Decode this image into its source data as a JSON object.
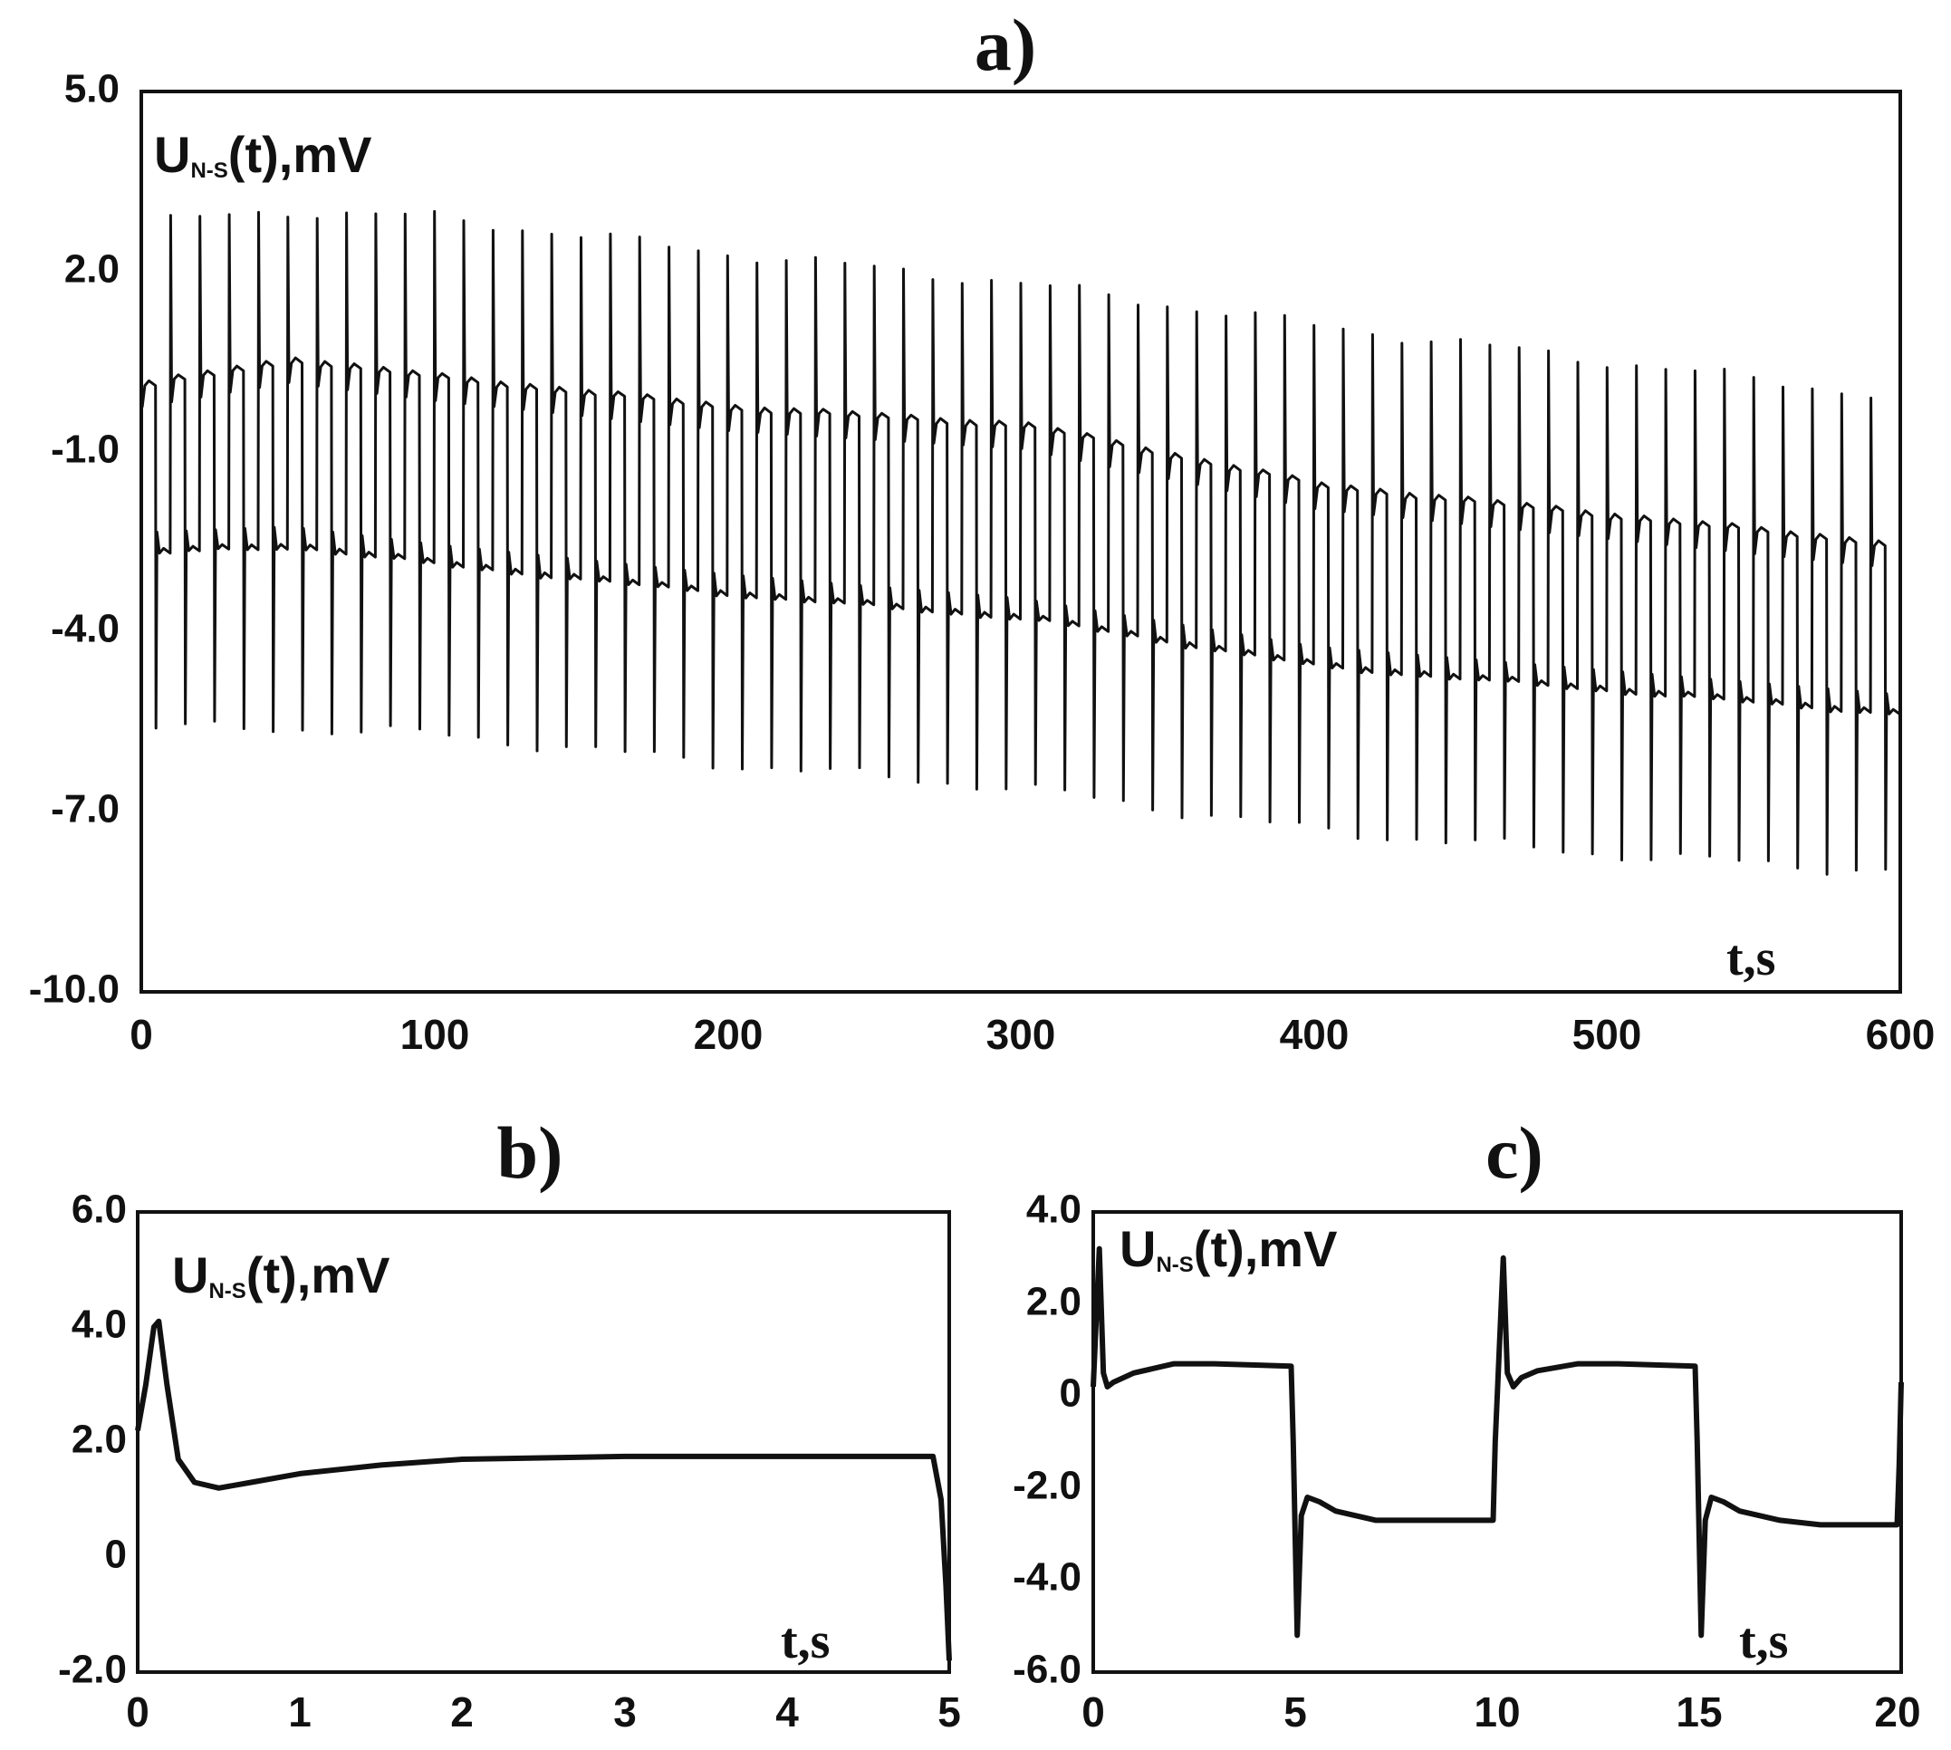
{
  "chart_data": [
    {
      "id": "a",
      "type": "line",
      "panel_label": "a)",
      "ylabel_main": "U",
      "ylabel_sub": "N-S",
      "ylabel_rest": "(t),mV",
      "xlabel": "t,s",
      "xlim": [
        0,
        600
      ],
      "ylim": [
        -10.0,
        5.0
      ],
      "xticks": [
        "0",
        "100",
        "200",
        "300",
        "400",
        "500",
        "600"
      ],
      "yticks": [
        "5.0",
        "2.0",
        "-1.0",
        "-4.0",
        "-7.0",
        "-10.0"
      ],
      "signal": {
        "period_s": 10,
        "t_start": 0,
        "t_end": 600,
        "high_level": {
          "t": [
            0,
            50,
            100,
            200,
            300,
            400,
            500,
            600
          ],
          "v": [
            0.1,
            0.5,
            0.2,
            -0.3,
            -0.6,
            -1.6,
            -2.1,
            -2.6
          ]
        },
        "low_level": {
          "t": [
            0,
            50,
            100,
            200,
            300,
            400,
            500,
            600
          ],
          "v": [
            -2.7,
            -2.6,
            -2.9,
            -3.4,
            -3.8,
            -4.6,
            -5.0,
            -5.4
          ]
        },
        "spike_top": {
          "t": [
            0,
            50,
            100,
            200,
            300,
            400,
            500,
            600
          ],
          "v": [
            2.8,
            3.0,
            2.9,
            2.3,
            1.8,
            1.1,
            0.5,
            -0.1
          ]
        },
        "spike_bottom": {
          "t": [
            0,
            50,
            100,
            200,
            300,
            400,
            500,
            600
          ],
          "v": [
            -5.6,
            -5.6,
            -5.7,
            -6.2,
            -6.6,
            -7.3,
            -7.7,
            -8.0
          ]
        }
      }
    },
    {
      "id": "b",
      "type": "line",
      "panel_label": "b)",
      "ylabel_main": "U",
      "ylabel_sub": "N-S",
      "ylabel_rest": "(t),mV",
      "xlabel": "t,s",
      "xlim": [
        0,
        5
      ],
      "ylim": [
        -2.0,
        6.0
      ],
      "xticks": [
        "0",
        "1",
        "2",
        "3",
        "4",
        "5"
      ],
      "yticks": [
        "6.0",
        "4.0",
        "2.0",
        "0",
        "-2.0"
      ],
      "x": [
        0,
        0.05,
        0.1,
        0.13,
        0.18,
        0.25,
        0.35,
        0.5,
        0.7,
        1.0,
        1.5,
        2.0,
        3.0,
        4.0,
        4.9,
        4.95,
        4.98,
        5.0
      ],
      "y": [
        2.2,
        3.0,
        4.0,
        4.1,
        3.0,
        1.7,
        1.3,
        1.2,
        1.3,
        1.45,
        1.6,
        1.7,
        1.75,
        1.75,
        1.75,
        1.0,
        -0.5,
        -1.8
      ]
    },
    {
      "id": "c",
      "type": "line",
      "panel_label": "c)",
      "ylabel_main": "U",
      "ylabel_sub": "N-S",
      "ylabel_rest": "(t),mV",
      "xlabel": "t,s",
      "xlim": [
        0,
        20
      ],
      "ylim": [
        -6.0,
        4.0
      ],
      "xticks": [
        "0",
        "5",
        "10",
        "15",
        "20"
      ],
      "yticks": [
        "4.0",
        "2.0",
        "0",
        "-2.0",
        "-4.0",
        "-6.0"
      ],
      "x": [
        0,
        0.15,
        0.25,
        0.35,
        0.5,
        1.0,
        2.0,
        3.0,
        4.9,
        4.95,
        5.05,
        5.15,
        5.3,
        5.6,
        6.0,
        7.0,
        8.0,
        9.9,
        9.95,
        10.15,
        10.25,
        10.4,
        10.6,
        11.0,
        12.0,
        13.0,
        14.9,
        14.95,
        15.05,
        15.15,
        15.3,
        15.6,
        16.0,
        17.0,
        18.0,
        19.9,
        19.95,
        20.0
      ],
      "y": [
        0.2,
        3.2,
        0.5,
        0.2,
        0.3,
        0.5,
        0.7,
        0.7,
        0.65,
        -1.0,
        -5.2,
        -2.6,
        -2.2,
        -2.3,
        -2.5,
        -2.7,
        -2.7,
        -2.7,
        -1.0,
        3.0,
        0.5,
        0.2,
        0.4,
        0.55,
        0.7,
        0.7,
        0.65,
        -1.0,
        -5.2,
        -2.7,
        -2.2,
        -2.3,
        -2.5,
        -2.7,
        -2.8,
        -2.8,
        -1.5,
        0.3
      ]
    }
  ]
}
